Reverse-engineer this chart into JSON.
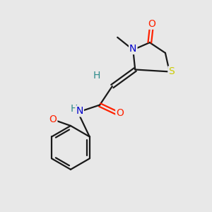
{
  "bg_color": "#e8e8e8",
  "bond_color": "#1a1a1a",
  "atom_colors": {
    "N": "#0000cc",
    "O": "#ff2200",
    "S": "#cccc00",
    "H": "#2e8b8b",
    "C": "#1a1a1a"
  },
  "figsize": [
    3.0,
    3.0
  ],
  "dpi": 100
}
